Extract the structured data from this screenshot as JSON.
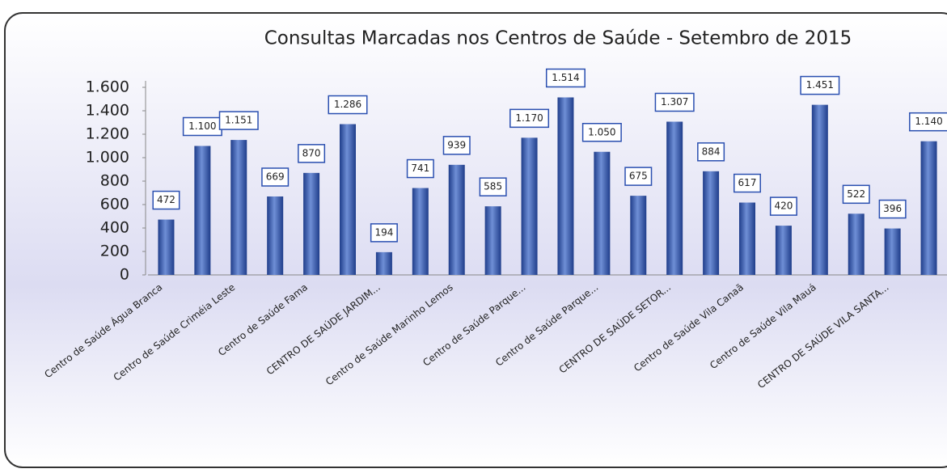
{
  "chart_data": {
    "type": "bar",
    "title": "Consultas Marcadas nos Centros de Saúde - Setembro de 2015",
    "categories": [
      "Centro de Saúde Água Branca",
      null,
      "Centro de Saúde Criméia Leste",
      null,
      "Centro de Saúde Fama",
      null,
      "CENTRO DE SAÚDE JARDIM...",
      null,
      "Centro de Saúde Marinho Lemos",
      null,
      "Centro de Saúde Parque...",
      null,
      "Centro de Saúde Parque...",
      null,
      "CENTRO DE SAÚDE SETOR...",
      null,
      "Centro de Saúde Vila Canaã",
      null,
      "Centro de Saúde Vila Mauá",
      null,
      "CENTRO DE SAÚDE VILA SANTA...",
      null
    ],
    "values": [
      472,
      1100,
      1151,
      669,
      870,
      1286,
      194,
      741,
      939,
      585,
      1170,
      1514,
      1050,
      675,
      1307,
      884,
      617,
      420,
      1451,
      522,
      396,
      1140
    ],
    "value_labels": [
      "472",
      "1.100",
      "1.151",
      "669",
      "870",
      "1.286",
      "194",
      "741",
      "939",
      "585",
      "1.170",
      "1.514",
      "1.050",
      "675",
      "1.307",
      "884",
      "617",
      "420",
      "1.451",
      "522",
      "396",
      "1.140"
    ],
    "color": "#1f3d8a",
    "ylim": [
      0,
      1600
    ],
    "yticks": [
      0,
      200,
      400,
      600,
      800,
      {
        "value": 1000,
        "label": "1.000"
      },
      {
        "value": 1200,
        "label": "1.200"
      },
      {
        "value": 1400,
        "label": "1.400"
      },
      {
        "value": 1600,
        "label": "1.600"
      }
    ],
    "grid": false
  }
}
